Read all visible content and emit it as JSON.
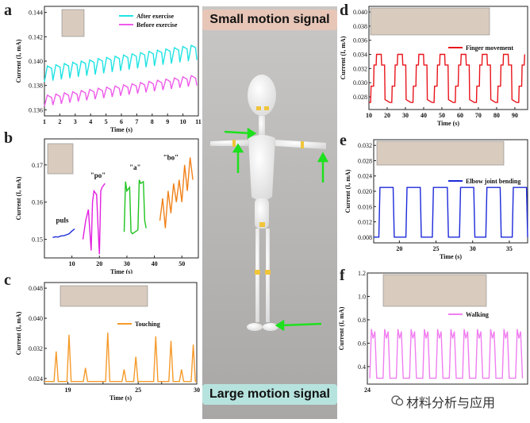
{
  "center": {
    "top_label": "Small motion signal",
    "bottom_label": "Large motion signal",
    "top_label_bg": "#e7c6b8",
    "bottom_label_bg": "#b7e3de"
  },
  "watermark": "材料分析与应用",
  "chart_data": [
    {
      "id": "a",
      "panel": "a",
      "type": "line",
      "title": "",
      "xlabel": "Time (s)",
      "ylabel": "Current (I, mA)",
      "xlim": [
        1,
        11
      ],
      "ylim": [
        0.1355,
        0.1445
      ],
      "xticks": [
        1,
        2,
        3,
        4,
        5,
        6,
        7,
        8,
        9,
        10,
        11
      ],
      "yticks": [
        0.136,
        0.138,
        0.14,
        0.142,
        0.144
      ],
      "ytick_labels": [
        "0.136",
        "0.138",
        "0.140",
        "0.142",
        "0.144"
      ],
      "legend": "top-right",
      "pattern": {
        "kind": "pulse_dips",
        "start": 1.0,
        "end": 11.0,
        "period": 0.55
      },
      "series": [
        {
          "name": "After exercise",
          "color": "#1fe3e3",
          "base_start": 0.1394,
          "base_end": 0.1412,
          "dip": 0.0011
        },
        {
          "name": "Before exercise",
          "color": "#ee5cea",
          "base_start": 0.137,
          "base_end": 0.1387,
          "dip": 0.0007
        }
      ]
    },
    {
      "id": "b",
      "panel": "b",
      "type": "line",
      "title": "",
      "xlabel": "Time (s)",
      "ylabel": "Current (I, mA)",
      "xlim": [
        0,
        56
      ],
      "ylim": [
        0.145,
        0.177
      ],
      "xticks": [
        10,
        20,
        30,
        40,
        50
      ],
      "yticks": [
        0.15,
        0.16,
        0.17
      ],
      "ytick_labels": [
        "0.15",
        "0.16",
        "0.17"
      ],
      "annotations": [
        {
          "text": "puls",
          "x": 6.5,
          "y": 0.1545
        },
        {
          "text": "\"po\"",
          "x": 19.5,
          "y": 0.1665
        },
        {
          "text": "\"a\"",
          "x": 33.0,
          "y": 0.1687
        },
        {
          "text": "\"bo\"",
          "x": 46.0,
          "y": 0.1713
        }
      ],
      "segments": [
        {
          "name": "puls",
          "color": "#1f2fd6",
          "x": [
            3,
            4,
            5,
            6,
            7,
            8,
            9,
            10,
            11
          ],
          "y": [
            0.1505,
            0.1507,
            0.1506,
            0.1509,
            0.151,
            0.1512,
            0.1515,
            0.1522,
            0.1528
          ]
        },
        {
          "name": "\"po\"",
          "color": "#e21ee0",
          "x": [
            14,
            15,
            16,
            17,
            17.5,
            18,
            19,
            19.5,
            20,
            20.5,
            21,
            22
          ],
          "y": [
            0.15,
            0.155,
            0.158,
            0.147,
            0.16,
            0.163,
            0.162,
            0.153,
            0.146,
            0.163,
            0.164,
            0.165
          ]
        },
        {
          "name": "\"a\"",
          "color": "#1fc41f",
          "x": [
            29,
            29.5,
            30,
            31,
            31.5,
            32,
            33,
            34,
            34.5,
            35,
            36,
            36.5,
            37
          ],
          "y": [
            0.152,
            0.1655,
            0.163,
            0.164,
            0.152,
            0.1515,
            0.152,
            0.1525,
            0.166,
            0.165,
            0.1655,
            0.155,
            0.153
          ]
        },
        {
          "name": "\"bo\"",
          "color": "#f0821a",
          "x": [
            42,
            43,
            44,
            45,
            46,
            47,
            48,
            49,
            50,
            51,
            52,
            53,
            54
          ],
          "y": [
            0.155,
            0.161,
            0.153,
            0.163,
            0.157,
            0.165,
            0.16,
            0.166,
            0.16,
            0.17,
            0.163,
            0.172,
            0.166
          ]
        }
      ]
    },
    {
      "id": "c",
      "panel": "c",
      "type": "line",
      "title": "",
      "xlabel": "Time (s)",
      "ylabel": "Current (I, mA)",
      "xlim": [
        17,
        30
      ],
      "ylim": [
        0.0225,
        0.0495
      ],
      "xticks": [
        19,
        22,
        25,
        27,
        30
      ],
      "tick_labels_x": [
        "19",
        "",
        "25",
        "",
        "30"
      ],
      "yticks": [
        0.024,
        0.032,
        0.04,
        0.048
      ],
      "ytick_labels": [
        "0.024",
        "0.032",
        "0.040",
        "0.048"
      ],
      "legend": "top-right",
      "pattern": {
        "kind": "spikes",
        "base": 0.0232,
        "width": 0.18
      },
      "series": [
        {
          "name": "Touching",
          "color": "#f59a2a",
          "peaks_x": [
            18.0,
            19.1,
            20.5,
            22.4,
            23.8,
            24.8,
            26.5,
            27.8,
            28.7,
            29.7
          ],
          "peaks_y": [
            0.0312,
            0.0356,
            0.0268,
            0.0362,
            0.0264,
            0.0298,
            0.0352,
            0.034,
            0.0264,
            0.033
          ]
        }
      ]
    },
    {
      "id": "d",
      "panel": "d",
      "type": "line",
      "title": "",
      "xlabel": "Time (s)",
      "ylabel": "Current (I, mA)",
      "xlim": [
        10,
        97
      ],
      "ylim": [
        0.0262,
        0.0408
      ],
      "xticks": [
        10,
        20,
        30,
        40,
        50,
        60,
        70,
        80,
        90
      ],
      "yticks": [
        0.028,
        0.03,
        0.032,
        0.034,
        0.036,
        0.038,
        0.04
      ],
      "ytick_labels": [
        "0.028",
        "0.030",
        "0.032",
        "0.034",
        "0.036",
        "0.038",
        "0.040"
      ],
      "legend": "top-right",
      "pattern": {
        "kind": "staircase",
        "start": 10,
        "period": 11.6,
        "low": 0.0272,
        "mid1": 0.0295,
        "mid2": 0.0325,
        "high": 0.034
      },
      "series": [
        {
          "name": "Finger movement",
          "color": "#e8141b"
        }
      ]
    },
    {
      "id": "e",
      "panel": "e",
      "type": "line",
      "title": "",
      "xlabel": "Time (s)",
      "ylabel": "Current (I, mA)",
      "xlim": [
        16.5,
        37.5
      ],
      "ylim": [
        0.0065,
        0.0335
      ],
      "xticks": [
        20,
        25,
        30,
        35
      ],
      "yticks": [
        0.008,
        0.012,
        0.016,
        0.02,
        0.024,
        0.028,
        0.032
      ],
      "ytick_labels": [
        "0.008",
        "0.012",
        "0.016",
        "0.020",
        "0.024",
        "0.028",
        "0.032"
      ],
      "legend": "top-right",
      "pattern": {
        "kind": "square",
        "low": 0.008,
        "high": 0.021,
        "intervals": [
          [
            17.2,
            19.3
          ],
          [
            20.9,
            23.0
          ],
          [
            24.5,
            26.7
          ],
          [
            28.2,
            30.3
          ],
          [
            31.8,
            33.9
          ],
          [
            35.4,
            37.5
          ]
        ]
      },
      "series": [
        {
          "name": "Elbow joint bending",
          "color": "#1c29d9"
        }
      ]
    },
    {
      "id": "f",
      "panel": "f",
      "type": "line",
      "title": "",
      "xlabel": "Time (s)",
      "ylabel": "Current (I, mA)",
      "xlim": [
        24,
        50
      ],
      "ylim": [
        0.25,
        1.2
      ],
      "xticks": [
        24
      ],
      "yticks": [
        0.4,
        0.6,
        0.8,
        1.0,
        1.2
      ],
      "ytick_labels": [
        "0.4",
        "0.6",
        "0.8",
        "1.0",
        "1.2"
      ],
      "legend": "top-right",
      "pattern": {
        "kind": "walk",
        "start": 24.4,
        "period": 2.15,
        "low": 0.3,
        "high": 0.72
      },
      "series": [
        {
          "name": "Walking",
          "color": "#f07ef0"
        }
      ]
    }
  ]
}
